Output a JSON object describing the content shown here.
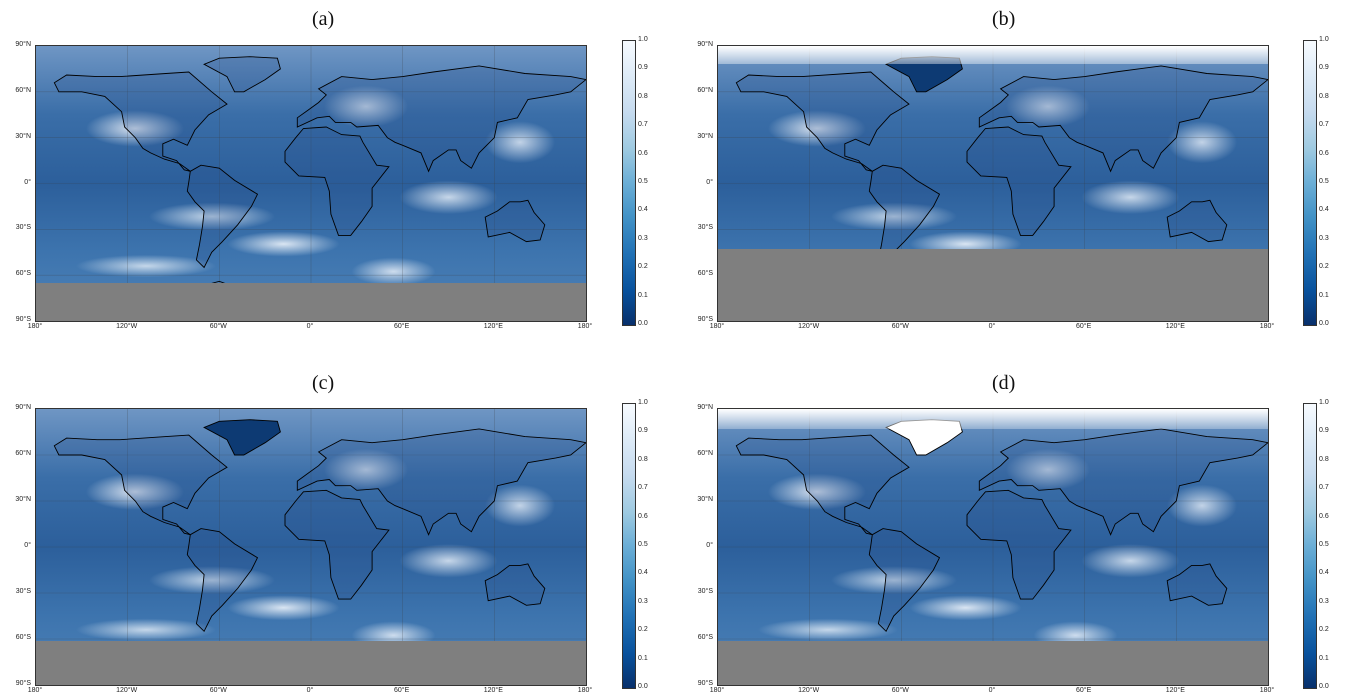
{
  "panels": [
    {
      "label": "(a)",
      "arctic": "cloud",
      "greenland": "none"
    },
    {
      "label": "(b)",
      "arctic": "white",
      "greenland": "dark"
    },
    {
      "label": "(c)",
      "arctic": "cloud",
      "greenland": "dark"
    },
    {
      "label": "(d)",
      "arctic": "white",
      "greenland": "white"
    }
  ],
  "lat_ticks": [
    "90°N",
    "60°N",
    "30°N",
    "0°",
    "30°S",
    "60°S",
    "90°S"
  ],
  "lon_ticks": [
    "180°",
    "120°W",
    "60°W",
    "0°",
    "60°E",
    "120°E",
    "180°"
  ],
  "colorbar": {
    "ticks": [
      "1.0",
      "0.9",
      "0.8",
      "0.7",
      "0.6",
      "0.5",
      "0.4",
      "0.3",
      "0.2",
      "0.1",
      "0.0"
    ],
    "colormap": "Blues_r",
    "min": 0.0,
    "max": 1.0
  },
  "colors": {
    "no_data": "#7f7f7f",
    "coastline": "#000000"
  }
}
